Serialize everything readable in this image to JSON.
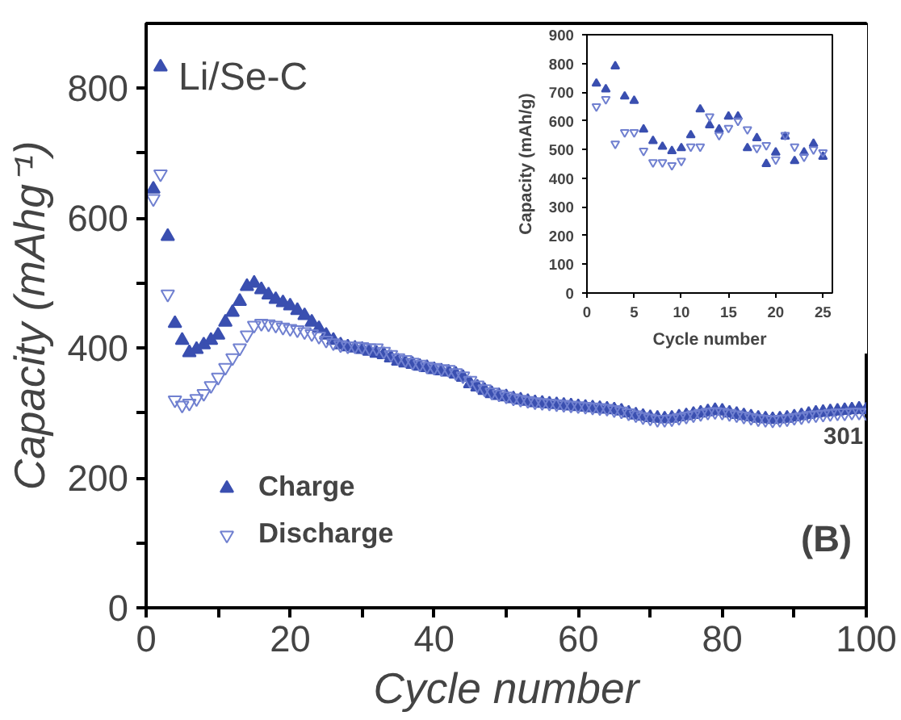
{
  "chart_data": [
    {
      "type": "scatter",
      "xlabel": "Cycle number",
      "ylabel": "Capacity (mAhg⁻¹)",
      "xlim": [
        0,
        100
      ],
      "ylim": [
        0,
        900
      ],
      "xticks": [
        0,
        {
          "value": 10,
          "label": null
        },
        20,
        {
          "value": 30,
          "label": null
        },
        40,
        {
          "value": 50,
          "label": null
        },
        60,
        {
          "value": 70,
          "label": null
        },
        80,
        {
          "value": 90,
          "label": null
        },
        100
      ],
      "yticks": [
        0,
        {
          "value": 100,
          "label": null
        },
        200,
        {
          "value": 300,
          "label": null
        },
        400,
        {
          "value": 500,
          "label": null
        },
        600,
        {
          "value": 700,
          "label": null
        },
        800
      ],
      "x": [
        1,
        2,
        3,
        4,
        5,
        6,
        7,
        8,
        9,
        10,
        11,
        12,
        13,
        14,
        15,
        16,
        17,
        18,
        19,
        20,
        21,
        22,
        23,
        24,
        25,
        26,
        27,
        28,
        29,
        30,
        31,
        32,
        33,
        34,
        35,
        36,
        37,
        38,
        39,
        40,
        41,
        42,
        43,
        44,
        45,
        46,
        47,
        48,
        49,
        50,
        51,
        52,
        53,
        54,
        55,
        56,
        57,
        58,
        59,
        60,
        61,
        62,
        63,
        64,
        65,
        66,
        67,
        68,
        69,
        70,
        71,
        72,
        73,
        74,
        75,
        76,
        77,
        78,
        79,
        80,
        81,
        82,
        83,
        84,
        85,
        86,
        87,
        88,
        89,
        90,
        91,
        92,
        93,
        94,
        95,
        96,
        97,
        98,
        99,
        100
      ],
      "series": [
        {
          "name": "Charge",
          "color": "#3a4fb0",
          "marker": "triangle",
          "values": [
            645,
            833,
            572,
            438,
            412,
            393,
            398,
            405,
            412,
            420,
            440,
            455,
            472,
            495,
            500,
            490,
            482,
            475,
            470,
            465,
            458,
            450,
            440,
            430,
            420,
            412,
            405,
            402,
            400,
            398,
            395,
            392,
            390,
            385,
            380,
            377,
            375,
            372,
            370,
            367,
            365,
            363,
            360,
            355,
            345,
            340,
            335,
            330,
            327,
            325,
            322,
            320,
            318,
            316,
            315,
            314,
            313,
            312,
            311,
            310,
            309,
            308,
            307,
            306,
            305,
            303,
            300,
            297,
            295,
            293,
            292,
            291,
            292,
            294,
            296,
            298,
            300,
            302,
            304,
            303,
            300,
            298,
            296,
            294,
            292,
            291,
            290,
            291,
            292,
            294,
            296,
            298,
            300,
            301,
            302,
            303,
            304,
            305,
            306,
            305
          ]
        },
        {
          "name": "Discharge",
          "color": "#7080d0",
          "marker": "triangle",
          "values": [
            630,
            668,
            483,
            320,
            312,
            315,
            322,
            330,
            342,
            355,
            370,
            385,
            400,
            420,
            435,
            438,
            437,
            435,
            432,
            430,
            428,
            425,
            422,
            418,
            412,
            408,
            405,
            403,
            403,
            402,
            400,
            400,
            395,
            390,
            385,
            382,
            378,
            375,
            372,
            370,
            368,
            367,
            362,
            357,
            350,
            343,
            337,
            332,
            329,
            326,
            323,
            321,
            319,
            317,
            316,
            315,
            314,
            313,
            312,
            311,
            310,
            309,
            308,
            307,
            305,
            303,
            300,
            297,
            294,
            292,
            290,
            290,
            291,
            293,
            295,
            297,
            299,
            301,
            302,
            301,
            299,
            297,
            295,
            293,
            291,
            290,
            289,
            290,
            291,
            293,
            294,
            296,
            297,
            298,
            299,
            300,
            300,
            301,
            301,
            300
          ]
        }
      ],
      "legend": "bottom left",
      "annotations": [
        "Li/Se-C",
        "(B)",
        {
          "text": "301",
          "x": 100,
          "y": 300
        }
      ]
    },
    {
      "type": "scatter",
      "xlabel": "Cycle number",
      "ylabel": "Capacity (mAh/g)",
      "xlim": [
        0,
        26
      ],
      "ylim": [
        0,
        900
      ],
      "xticks": [
        0,
        5,
        10,
        15,
        20,
        25
      ],
      "yticks": [
        0,
        100,
        200,
        300,
        400,
        500,
        600,
        700,
        800,
        900
      ],
      "x": [
        1,
        2,
        3,
        4,
        5,
        6,
        7,
        8,
        9,
        10,
        11,
        12,
        13,
        14,
        15,
        16,
        17,
        18,
        19,
        20,
        21,
        22,
        23,
        24,
        25
      ],
      "series": [
        {
          "color": "#3a4fb0",
          "marker": "triangle",
          "values": [
            730,
            710,
            790,
            685,
            670,
            570,
            530,
            510,
            495,
            505,
            550,
            640,
            585,
            570,
            615,
            615,
            505,
            540,
            450,
            490,
            545,
            460,
            490,
            520,
            475
          ]
        },
        {
          "color": "#7080d0",
          "marker": "triangle",
          "values": [
            650,
            675,
            520,
            560,
            560,
            495,
            455,
            455,
            445,
            460,
            510,
            510,
            615,
            550,
            575,
            600,
            570,
            505,
            515,
            465,
            550,
            510,
            475,
            500,
            490
          ]
        }
      ]
    }
  ]
}
